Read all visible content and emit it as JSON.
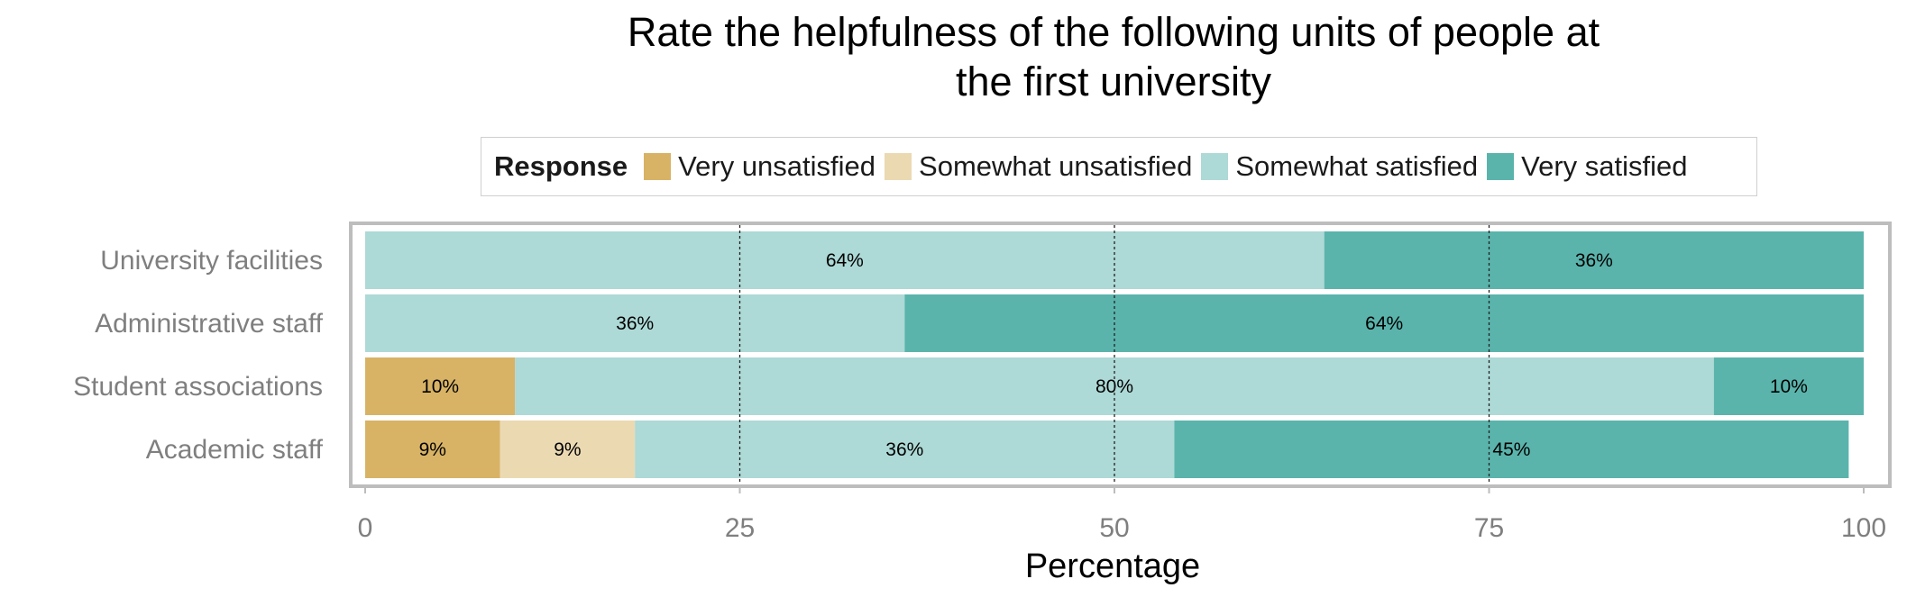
{
  "chart_data": {
    "type": "bar",
    "orientation": "horizontal",
    "stacked": true,
    "title_lines": [
      "Rate the helpfulness of the following units of people at",
      "the first university"
    ],
    "xlabel": "Percentage",
    "ylabel": "",
    "xlim": [
      0,
      100
    ],
    "x_ticks": [
      0,
      25,
      50,
      75,
      100
    ],
    "legend_title": "Response",
    "legend_position": "top",
    "categories": [
      "University facilities",
      "Administrative staff",
      "Student associations",
      "Academic staff"
    ],
    "series": [
      {
        "name": "Very unsatisfied",
        "color": "#D8B365",
        "values": [
          0,
          0,
          10,
          9
        ],
        "labels": [
          "",
          "",
          "10%",
          "9%"
        ]
      },
      {
        "name": "Somewhat unsatisfied",
        "color": "#EBD9B2",
        "values": [
          0,
          0,
          0,
          9
        ],
        "labels": [
          "",
          "",
          "",
          "9%"
        ]
      },
      {
        "name": "Somewhat satisfied",
        "color": "#ADD9D6",
        "values": [
          64,
          36,
          80,
          36
        ],
        "labels": [
          "64%",
          "36%",
          "80%",
          "36%"
        ]
      },
      {
        "name": "Very satisfied",
        "color": "#5AB4AC",
        "values": [
          36,
          64,
          10,
          45
        ],
        "labels": [
          "36%",
          "64%",
          "10%",
          "45%"
        ]
      }
    ],
    "reference_lines_x": [
      25,
      50,
      75
    ],
    "grid": true
  }
}
